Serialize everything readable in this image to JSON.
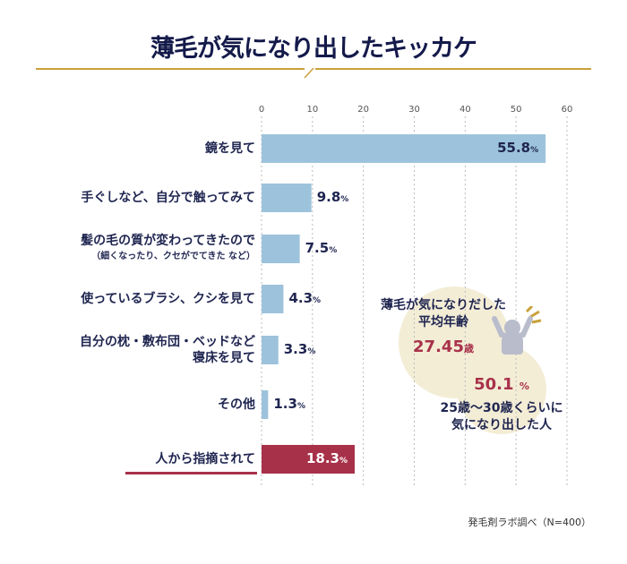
{
  "title": "薄毛が気になり出したキッカケ",
  "source": "発毛剤ラボ調べ（N=400）",
  "colors": {
    "bar": "#9dc3dc",
    "highlight": "#a8314a",
    "navy": "#1f2550",
    "gold": "#c9a13a",
    "circle": "#f3edd6"
  },
  "chart_data": {
    "type": "bar",
    "orientation": "horizontal",
    "xlim": [
      0,
      60
    ],
    "xticks": [
      0,
      10,
      20,
      30,
      40,
      50,
      60
    ],
    "grid": true,
    "unit": "%",
    "categories": [
      {
        "label": "鏡を見て",
        "sub": ""
      },
      {
        "label": "手ぐしなど、自分で触ってみて",
        "sub": ""
      },
      {
        "label": "髪の毛の質が変わってきたので",
        "sub": "（細くなったり、クセがでてきた など）"
      },
      {
        "label": "使っているブラシ、クシを見て",
        "sub": ""
      },
      {
        "label": "自分の枕・敷布団・ベッドなど",
        "sub": "寝床を見て"
      },
      {
        "label": "その他",
        "sub": ""
      },
      {
        "label": "人から指摘されて",
        "sub": ""
      }
    ],
    "values": [
      55.8,
      9.8,
      7.5,
      4.3,
      3.3,
      1.3,
      18.3
    ],
    "highlighted": [
      6
    ]
  },
  "inset": {
    "avg_label_1": "薄毛が気になりだした",
    "avg_label_2": "平均年齢",
    "avg_value": "27.45",
    "avg_unit": "歳",
    "pct_value": "50.1",
    "pct_unit": "%",
    "pct_label_1": "25歳〜30歳くらいに",
    "pct_label_2": "気になり出した人",
    "icon": "person-hands-on-head-icon"
  }
}
